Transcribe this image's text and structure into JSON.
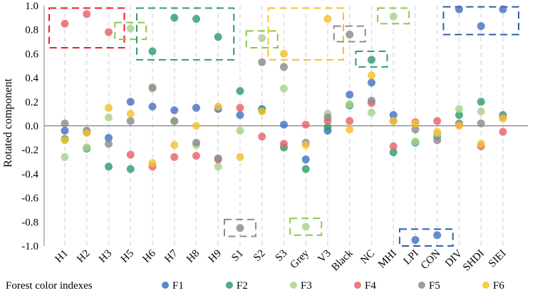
{
  "chart_data": {
    "type": "scatter",
    "ylabel": "Rotated component",
    "legend_title": "Forest color indexes",
    "ylim": [
      -1.0,
      1.0
    ],
    "yticks": [
      "1.0",
      "0.8",
      "0.6",
      "0.4",
      "0.2",
      "0.0",
      "-0.2",
      "-0.4",
      "-0.6",
      "-0.8",
      "-1.0"
    ],
    "ytick_values": [
      1.0,
      0.8,
      0.6,
      0.4,
      0.2,
      0.0,
      -0.2,
      -0.4,
      -0.6,
      -0.8,
      -1.0
    ],
    "categories": [
      "H1",
      "H2",
      "H3",
      "H5",
      "H6",
      "H7",
      "H8",
      "H9",
      "S1",
      "S2",
      "S3",
      "Grey",
      "V3",
      "Black",
      "NC",
      "MHI",
      "LPI",
      "CON",
      "DIV",
      "SHDI",
      "SIEI"
    ],
    "series": [
      {
        "name": "F1",
        "color": "#4472C4",
        "values": [
          -0.04,
          -0.05,
          -0.1,
          0.2,
          0.16,
          0.13,
          0.15,
          0.14,
          0.09,
          0.14,
          0.01,
          -0.28,
          -0.04,
          0.26,
          0.36,
          0.09,
          -0.95,
          -0.91,
          0.97,
          0.83,
          0.97
        ]
      },
      {
        "name": "F2",
        "color": "#2E9E6E",
        "values": [
          -0.11,
          -0.19,
          -0.34,
          -0.36,
          0.62,
          0.9,
          0.89,
          0.74,
          0.29,
          0.13,
          -0.18,
          -0.36,
          -0.01,
          0.17,
          0.55,
          -0.22,
          -0.14,
          -0.09,
          0.09,
          0.2,
          0.09
        ]
      },
      {
        "name": "F3",
        "color": "#A9D18E",
        "values": [
          -0.26,
          -0.18,
          0.07,
          0.81,
          0.31,
          0.04,
          -0.16,
          -0.34,
          -0.04,
          0.73,
          0.31,
          -0.84,
          0.1,
          0.18,
          0.11,
          0.91,
          -0.13,
          -0.07,
          0.14,
          0.12,
          0.07
        ]
      },
      {
        "name": "F4",
        "color": "#E8636B",
        "values": [
          0.85,
          0.93,
          0.78,
          -0.24,
          -0.34,
          -0.26,
          -0.25,
          -0.28,
          0.15,
          -0.09,
          -0.15,
          0.01,
          0.04,
          0.04,
          0.19,
          -0.17,
          0.03,
          0.04,
          0.01,
          -0.17,
          -0.05
        ]
      },
      {
        "name": "F5",
        "color": "#8C8C8C",
        "values": [
          0.02,
          -0.04,
          -0.15,
          0.04,
          0.32,
          0.04,
          -0.14,
          -0.27,
          -0.85,
          0.53,
          0.49,
          -0.14,
          0.07,
          0.76,
          0.21,
          0.04,
          -0.03,
          -0.12,
          0.02,
          0.02,
          0.08
        ]
      },
      {
        "name": "F6",
        "color": "#F5C12E",
        "values": [
          -0.12,
          -0.06,
          0.15,
          0.1,
          -0.31,
          -0.16,
          0.0,
          0.16,
          -0.26,
          0.12,
          0.6,
          -0.16,
          0.89,
          -0.03,
          0.42,
          0.04,
          0.02,
          -0.05,
          0.0,
          -0.15,
          0.06
        ]
      }
    ],
    "highlight_boxes": [
      {
        "color": "#E8202A",
        "from": "H1",
        "to": "H3",
        "ymin": 0.65,
        "ymax": 0.98
      },
      {
        "color": "#8CC84B",
        "from": "H5",
        "to": "H5",
        "ymin": 0.72,
        "ymax": 0.86
      },
      {
        "color": "#2E9E6E",
        "from": "H6",
        "to": "H9",
        "ymin": 0.55,
        "ymax": 0.98
      },
      {
        "color": "#8C8C8C",
        "from": "S1",
        "to": "S1",
        "ymin": -0.92,
        "ymax": -0.78
      },
      {
        "color": "#8CC84B",
        "from": "S2",
        "to": "S2",
        "ymin": 0.65,
        "ymax": 0.79
      },
      {
        "color": "#F5C12E",
        "from": "S3",
        "to": "V3",
        "ymin": 0.55,
        "ymax": 0.98
      },
      {
        "color": "#8CC84B",
        "from": "Grey",
        "to": "Grey",
        "ymin": -0.91,
        "ymax": -0.77
      },
      {
        "color": "#8C8C8C",
        "from": "Black",
        "to": "Black",
        "ymin": 0.7,
        "ymax": 0.83
      },
      {
        "color": "#2E9E6E",
        "from": "NC",
        "to": "NC",
        "ymin": 0.49,
        "ymax": 0.62
      },
      {
        "color": "#8CC84B",
        "from": "MHI",
        "to": "MHI",
        "ymin": 0.85,
        "ymax": 0.98
      },
      {
        "color": "#2E5FAA",
        "from": "LPI",
        "to": "CON",
        "ymin": -1.0,
        "ymax": -0.86
      },
      {
        "color": "#2E5FAA",
        "from": "DIV",
        "to": "SIEI",
        "ymin": 0.76,
        "ymax": 0.99
      }
    ]
  }
}
